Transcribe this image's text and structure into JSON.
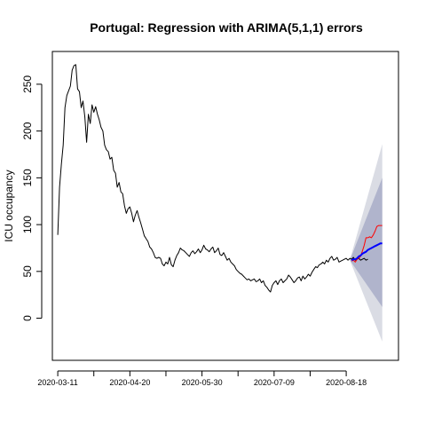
{
  "chart_data": {
    "type": "line",
    "title": "Portugal: Regression with ARIMA(5,1,1) errors",
    "xlabel": "",
    "ylabel": "ICU occupancy",
    "x_tick_labels": [
      "2020-03-11",
      "2020-04-20",
      "2020-05-30",
      "2020-07-09",
      "2020-08-18"
    ],
    "x_tick_days": [
      0,
      40,
      80,
      120,
      160
    ],
    "x_unlabeled_ticks": [
      20,
      60,
      100,
      140
    ],
    "xlim": [
      -3,
      189
    ],
    "ylim": [
      -45,
      285
    ],
    "y_ticks": [
      0,
      50,
      100,
      150,
      200,
      250
    ],
    "grid": false,
    "legend": "none",
    "colors": {
      "observed": "#000000",
      "actual_future": "#ff0000",
      "forecast_mean": "#0000ff",
      "band_80": "#b0b4cc",
      "band_95": "#dadce4"
    },
    "series": [
      {
        "role": "observed",
        "x": [
          0,
          1,
          2,
          3,
          4,
          5,
          6,
          7,
          8,
          9,
          10,
          11,
          12,
          13,
          14,
          15,
          16,
          17,
          18,
          19,
          20,
          21,
          22,
          23,
          24,
          25,
          26,
          27,
          28,
          29,
          30,
          31,
          32,
          33,
          34,
          35,
          36,
          37,
          38,
          39,
          40,
          41,
          42,
          43,
          44,
          45,
          46,
          47,
          48,
          49,
          50,
          51,
          52,
          53,
          54,
          55,
          56,
          57,
          58,
          59,
          60,
          61,
          62,
          63,
          64,
          65,
          66,
          67,
          68,
          69,
          70,
          71,
          72,
          73,
          74,
          75,
          76,
          77,
          78,
          79,
          80,
          81,
          82,
          83,
          84,
          85,
          86,
          87,
          88,
          89,
          90,
          91,
          92,
          93,
          94,
          95,
          96,
          97,
          98,
          99,
          100,
          101,
          102,
          103,
          104,
          105,
          106,
          107,
          108,
          109,
          110,
          111,
          112,
          113,
          114,
          115,
          116,
          117,
          118,
          119,
          120,
          121,
          122,
          123,
          124,
          125,
          126,
          127,
          128,
          129,
          130,
          131,
          132,
          133,
          134,
          135,
          136,
          137,
          138,
          139,
          140,
          141,
          142,
          143,
          144,
          145,
          146,
          147,
          148,
          149,
          150,
          151,
          152,
          153,
          154,
          155,
          156,
          157,
          158,
          159,
          160,
          161,
          162,
          163,
          164,
          165,
          166,
          167,
          168,
          169,
          170,
          171,
          172
        ],
        "y": [
          89,
          140,
          165,
          185,
          225,
          238,
          243,
          248,
          265,
          270,
          271,
          245,
          242,
          225,
          232,
          215,
          188,
          218,
          208,
          228,
          220,
          226,
          218,
          212,
          204,
          200,
          185,
          180,
          178,
          170,
          172,
          158,
          155,
          140,
          145,
          135,
          133,
          120,
          112,
          117,
          119,
          112,
          103,
          110,
          115,
          108,
          102,
          95,
          88,
          85,
          82,
          76,
          74,
          70,
          65,
          64,
          65,
          64,
          58,
          56,
          60,
          58,
          65,
          57,
          55,
          62,
          67,
          70,
          75,
          73,
          72,
          70,
          68,
          66,
          70,
          72,
          69,
          71,
          74,
          70,
          73,
          78,
          74,
          73,
          71,
          74,
          76,
          70,
          72,
          75,
          68,
          67,
          70,
          66,
          62,
          64,
          60,
          58,
          56,
          52,
          50,
          48,
          47,
          45,
          43,
          41,
          42,
          40,
          41,
          42,
          39,
          40,
          42,
          38,
          40,
          35,
          33,
          30,
          28,
          35,
          38,
          40,
          36,
          40,
          42,
          38,
          40,
          42,
          46,
          44,
          41,
          38,
          40,
          43,
          44,
          40,
          45,
          42,
          44,
          47,
          45,
          49,
          52,
          55,
          54,
          57,
          58,
          60,
          58,
          62,
          60,
          64,
          66,
          62,
          63,
          65,
          60,
          61,
          62,
          63,
          64,
          62,
          64,
          63,
          65,
          62,
          63,
          64,
          62,
          63,
          64,
          62,
          63
        ]
      },
      {
        "role": "actual_future",
        "x": [
          163,
          164,
          165,
          166,
          167,
          168,
          169,
          170,
          171,
          172,
          173,
          174,
          175,
          176,
          177,
          178,
          179,
          180
        ],
        "y": [
          61,
          62,
          60,
          63,
          64,
          66,
          72,
          78,
          86,
          86,
          87,
          86,
          89,
          93,
          98,
          99,
          99,
          99
        ]
      },
      {
        "role": "forecast_mean",
        "x": [
          163,
          164,
          165,
          166,
          167,
          168,
          169,
          170,
          171,
          172,
          173,
          174,
          175,
          176,
          177,
          178,
          179,
          180
        ],
        "y": [
          62,
          63,
          63,
          64,
          66,
          67,
          69,
          70,
          71,
          73,
          74,
          75,
          76,
          77,
          78,
          79,
          80,
          80
        ]
      }
    ],
    "forecast_bands": {
      "x": [
        162,
        180
      ],
      "band_80": {
        "lower_end": 12,
        "upper_end": 150
      },
      "band_95": {
        "lower_end": -25,
        "upper_end": 186
      }
    }
  }
}
